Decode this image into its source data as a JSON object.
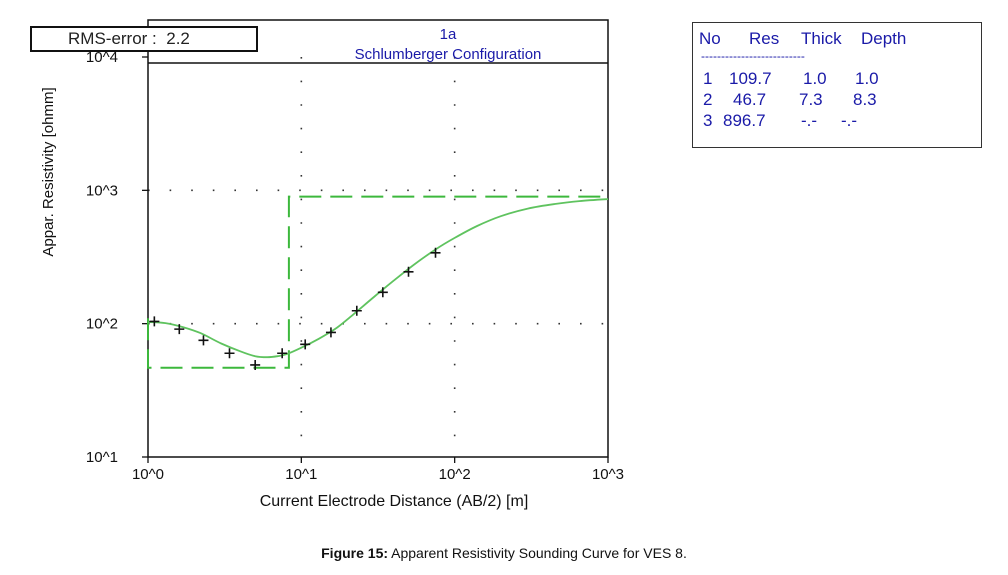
{
  "rms": {
    "label": "RMS-error :",
    "value": "2.2"
  },
  "model_table": {
    "headers": [
      "No",
      "Res",
      "Thick",
      "Depth"
    ],
    "separator": "--------------------------",
    "rows": [
      [
        "1",
        "109.7",
        "1.0",
        "1.0"
      ],
      [
        "2",
        "46.7",
        "7.3",
        "8.3"
      ],
      [
        "3",
        "896.7",
        "-.-",
        "-.-"
      ]
    ]
  },
  "caption": {
    "bold": "Figure 15:",
    "text": " Apparent Resistivity Sounding Curve for VES 8."
  },
  "colors": {
    "curve": "#5fc35f",
    "model": "#3cb83c",
    "text_blue": "#1a1aa8",
    "frame": "#111111"
  },
  "chart_data": {
    "type": "line",
    "title": "1a",
    "subtitle": "Schlumberger Configuration",
    "xlabel": "Current Electrode Distance (AB/2) [m]",
    "ylabel": "Appar. Resistivity [ohmm]",
    "x_scale": "log",
    "y_scale": "log",
    "xlim": [
      1,
      1000
    ],
    "ylim": [
      10,
      10000
    ],
    "x_ticks": [
      1,
      10,
      100,
      1000
    ],
    "x_tick_labels": [
      "10^0",
      "10^1",
      "10^2",
      "10^3"
    ],
    "y_ticks": [
      10,
      100,
      1000,
      10000
    ],
    "y_tick_labels": [
      "10^1",
      "10^2",
      "10^3",
      "10^4"
    ],
    "grid": "dotted",
    "series": [
      {
        "kind": "observed-points",
        "marker": "plus",
        "x": [
          1.1,
          1.6,
          2.3,
          3.4,
          5.0,
          7.5,
          10.6,
          15.6,
          23.0,
          34.0,
          50.0,
          75.0
        ],
        "y": [
          104,
          91,
          75,
          60,
          49,
          60,
          70,
          86,
          125,
          172,
          245,
          340
        ]
      },
      {
        "kind": "calculated-curve",
        "x": [
          1,
          1.3,
          1.7,
          2.2,
          3,
          4,
          5,
          6,
          7,
          8,
          10,
          13,
          17,
          22,
          30,
          40,
          55,
          75,
          100,
          140,
          200,
          300,
          450,
          650,
          1000
        ],
        "y": [
          103,
          101,
          94,
          85,
          71,
          62,
          57,
          56,
          57,
          59,
          66,
          77,
          93,
          118,
          160,
          210,
          280,
          360,
          440,
          540,
          640,
          730,
          790,
          830,
          860
        ]
      },
      {
        "kind": "layered-model",
        "style": "dashed",
        "x": [
          1,
          1,
          8.3,
          8.3,
          1000
        ],
        "y": [
          109.7,
          46.7,
          46.7,
          896.7,
          896.7
        ]
      }
    ]
  }
}
